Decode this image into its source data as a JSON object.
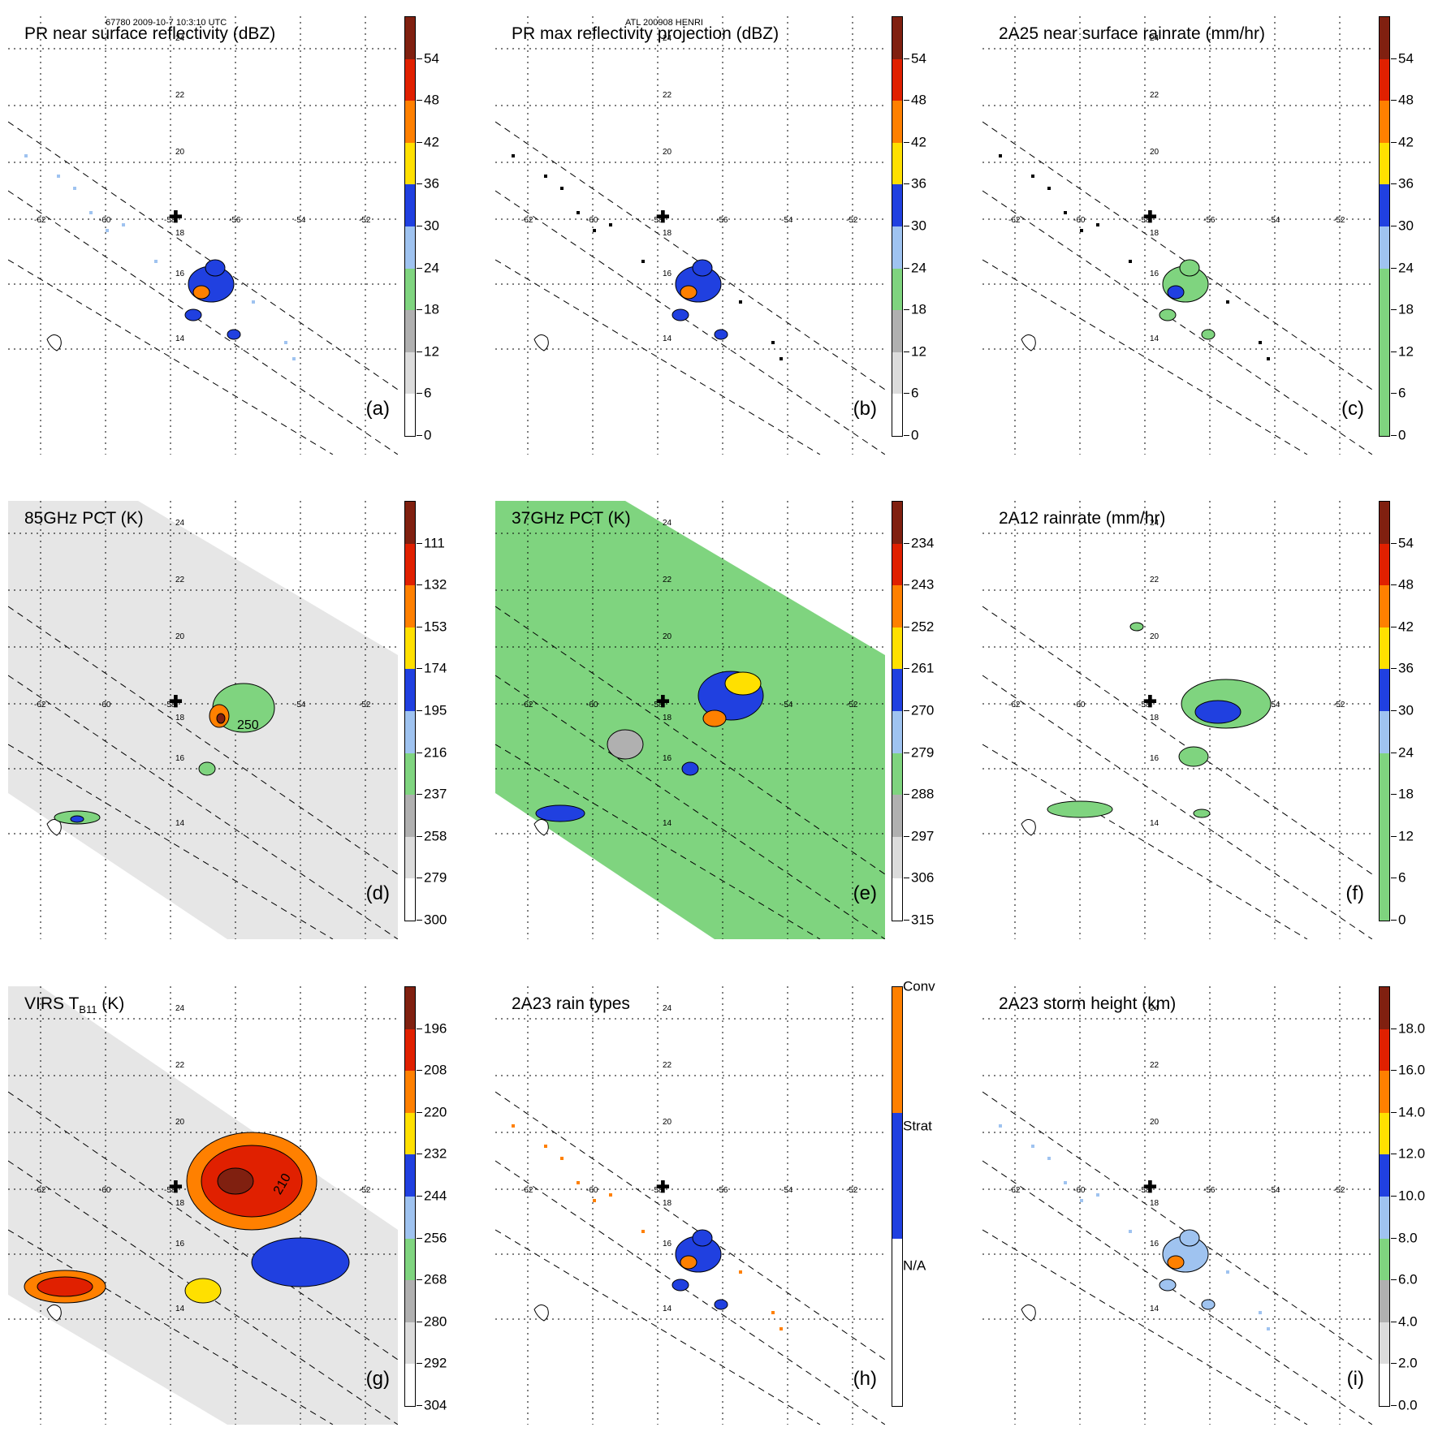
{
  "header": {
    "left": "67780 2009-10-7 10:3:10 UTC",
    "center": "ATL 200908 HENRI"
  },
  "geo": {
    "lon_labels": [
      "-62",
      "-60",
      "-58",
      "-56",
      "-54",
      "-52"
    ],
    "lat_labels": [
      "24",
      "22",
      "20",
      "18",
      "16",
      "14"
    ]
  },
  "colors": {
    "grey": "#b0b0b0",
    "green": "#7fd47f",
    "lightblue": "#9fc3f0",
    "blue": "#2040e0",
    "yellow": "#ffe000",
    "orange": "#ff8000",
    "red": "#e02000",
    "darkred": "#802010"
  },
  "panels": [
    {
      "id": "a",
      "title": "PR near surface reflectivity (dBZ)",
      "letter": "(a)",
      "ticks": [
        "54",
        "48",
        "42",
        "36",
        "30",
        "24",
        "18",
        "12",
        "6",
        "0"
      ]
    },
    {
      "id": "b",
      "title": "PR max reflectivity projection (dBZ)",
      "letter": "(b)",
      "ticks": [
        "54",
        "48",
        "42",
        "36",
        "30",
        "24",
        "18",
        "12",
        "6",
        "0"
      ]
    },
    {
      "id": "c",
      "title": "2A25 near surface rainrate (mm/hr)",
      "letter": "(c)",
      "ticks": [
        "54",
        "48",
        "42",
        "36",
        "30",
        "24",
        "18",
        "12",
        "6",
        "0"
      ]
    },
    {
      "id": "d",
      "title": "85GHz PCT (K)",
      "letter": "(d)",
      "contour_label": "250",
      "ticks": [
        "111",
        "132",
        "153",
        "174",
        "195",
        "216",
        "237",
        "258",
        "279",
        "300"
      ]
    },
    {
      "id": "e",
      "title": "37GHz PCT (K)",
      "letter": "(e)",
      "ticks": [
        "234",
        "243",
        "252",
        "261",
        "270",
        "279",
        "288",
        "297",
        "306",
        "315"
      ]
    },
    {
      "id": "f",
      "title": "2A12 rainrate (mm/hr)",
      "letter": "(f)",
      "ticks": [
        "54",
        "48",
        "42",
        "36",
        "30",
        "24",
        "18",
        "12",
        "6",
        "0"
      ]
    },
    {
      "id": "g",
      "title": "VIRS T",
      "title_sub": "B11",
      "title_end": " (K)",
      "letter": "(g)",
      "contour_label": "210",
      "ticks": [
        "196",
        "208",
        "220",
        "232",
        "244",
        "256",
        "268",
        "280",
        "292",
        "304"
      ]
    },
    {
      "id": "h",
      "title": "2A23 rain types",
      "letter": "(h)",
      "ticks": [
        "Conv",
        "Strat",
        "N/A"
      ]
    },
    {
      "id": "i",
      "title": "2A23 storm height (km)",
      "letter": "(i)",
      "ticks": [
        "18.0",
        "16.0",
        "14.0",
        "12.0",
        "10.0",
        "8.0",
        "6.0",
        "4.0",
        "2.0",
        "0.0"
      ]
    }
  ]
}
